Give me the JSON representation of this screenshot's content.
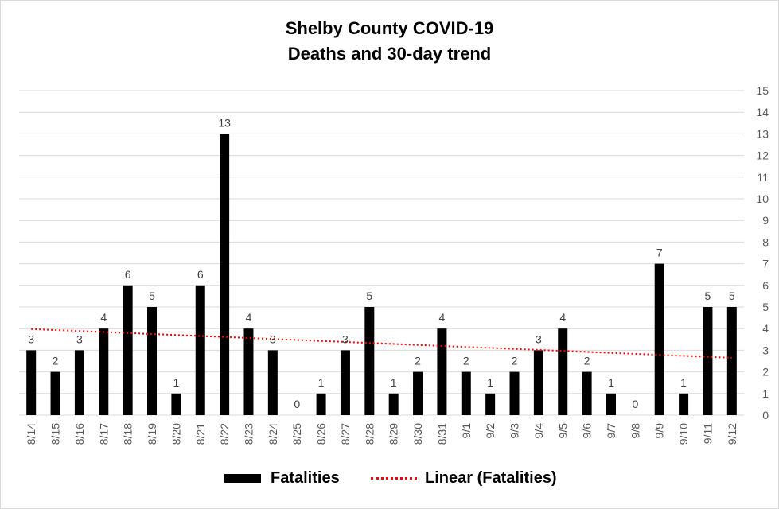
{
  "chart_data": {
    "type": "bar",
    "title_line1": "Shelby County COVID-19",
    "title_line2": "Deaths and 30-day trend",
    "xlabel": "",
    "ylabel": "",
    "ylim": [
      0,
      15
    ],
    "yticks": [
      0,
      1,
      2,
      3,
      4,
      5,
      6,
      7,
      8,
      9,
      10,
      11,
      12,
      13,
      14,
      15
    ],
    "y_axis_side": "right",
    "grid": true,
    "legend_placement": "bottom",
    "categories": [
      "8/14",
      "8/15",
      "8/16",
      "8/17",
      "8/18",
      "8/19",
      "8/20",
      "8/21",
      "8/22",
      "8/23",
      "8/24",
      "8/25",
      "8/26",
      "8/27",
      "8/28",
      "8/29",
      "8/30",
      "8/31",
      "9/1",
      "9/2",
      "9/3",
      "9/4",
      "9/5",
      "9/6",
      "9/7",
      "9/8",
      "9/9",
      "9/10",
      "9/11",
      "9/12"
    ],
    "series": [
      {
        "name": "Fatalities",
        "color": "#000000",
        "values": [
          3,
          2,
          3,
          4,
          6,
          5,
          1,
          6,
          13,
          4,
          3,
          0,
          1,
          3,
          5,
          1,
          2,
          4,
          2,
          1,
          2,
          3,
          4,
          2,
          1,
          0,
          7,
          1,
          5,
          5
        ]
      }
    ],
    "trendline": {
      "name": "Linear (Fatalities)",
      "color": "#ff0000",
      "style": "dotted",
      "start": 3.98,
      "end": 2.65
    }
  }
}
